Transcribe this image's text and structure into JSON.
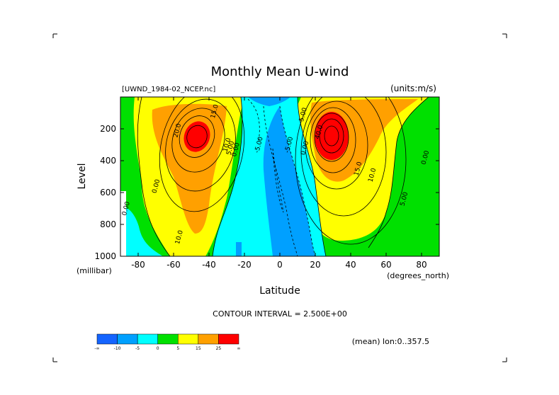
{
  "page": {
    "title": "Monthly Mean U-wind",
    "dataset": "[UWND_1984-02_NCEP.nc]",
    "units": "(units:m/s)",
    "contour_interval": "CONTOUR INTERVAL = 2.500E+00",
    "footer_note": "(mean) lon:0..357.5"
  },
  "chart_data": {
    "type": "heatmap",
    "title": "Monthly Mean U-wind",
    "xlabel": "Latitude",
    "x_unit": "(degrees_north)",
    "ylabel": "Level",
    "y_unit": "(millibar)",
    "xlim": [
      -90,
      90
    ],
    "ylim": [
      1000,
      0
    ],
    "y_reversed": true,
    "x_ticks": [
      -80,
      -60,
      -40,
      -20,
      0,
      20,
      40,
      60,
      80
    ],
    "x_tick_labels": [
      "-80",
      "-60",
      "-40",
      "-20",
      "0",
      "20",
      "40",
      "60",
      "80"
    ],
    "y_ticks": [
      200,
      400,
      600,
      800,
      1000
    ],
    "y_tick_labels": [
      "200",
      "400",
      "600",
      "800",
      "1000"
    ],
    "contour_interval": 2.5,
    "jets": [
      {
        "lat": -50,
        "level": 270,
        "peak": 28
      },
      {
        "lat": 30,
        "level": 200,
        "peak": 42
      }
    ],
    "contour_labels": [
      {
        "text": "15.0",
        "lat": -37,
        "level": 90
      },
      {
        "text": "20.0",
        "lat": -58,
        "level": 210
      },
      {
        "text": "10.0",
        "lat": -30,
        "level": 300
      },
      {
        "text": "5.00",
        "lat": -28,
        "level": 320
      },
      {
        "text": "0.00",
        "lat": -25,
        "level": 330
      },
      {
        "text": "-5.00",
        "lat": -12,
        "level": 300
      },
      {
        "text": "-5.00",
        "lat": 5,
        "level": 300
      },
      {
        "text": "0.00",
        "lat": 14,
        "level": 320
      },
      {
        "text": "5.00",
        "lat": 13,
        "level": 110
      },
      {
        "text": "40.0",
        "lat": 22,
        "level": 220
      },
      {
        "text": "15.0",
        "lat": 44,
        "level": 450
      },
      {
        "text": "10.0",
        "lat": 52,
        "level": 490
      },
      {
        "text": "5.00",
        "lat": 70,
        "level": 640
      },
      {
        "text": "0.00",
        "lat": 82,
        "level": 380
      },
      {
        "text": "0.00",
        "lat": -70,
        "level": 560
      },
      {
        "text": "0.00",
        "lat": -87,
        "level": 700
      },
      {
        "text": "10.0",
        "lat": -57,
        "level": 880
      }
    ],
    "colorbar": {
      "colors": [
        "#1464ff",
        "#00a0ff",
        "#00ffff",
        "#00e000",
        "#ffff00",
        "#ffa000",
        "#ff0000"
      ],
      "labels": [
        "-∞",
        "-10",
        "-5",
        "0",
        "5",
        "15",
        "25",
        "∞"
      ]
    },
    "grid": false,
    "legend": "bottom-left"
  }
}
